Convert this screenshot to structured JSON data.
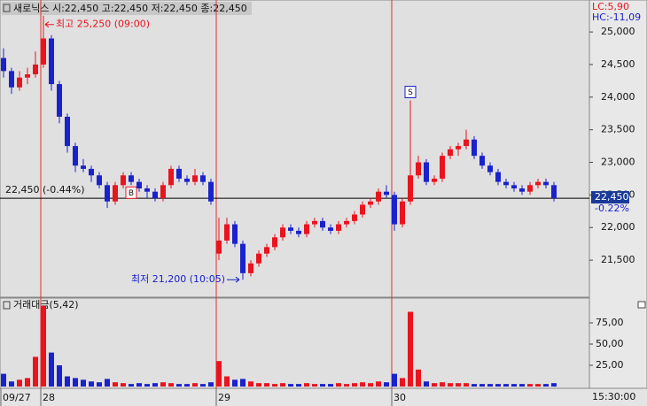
{
  "chart_data": {
    "type": "candlestick",
    "title": "새로닉스 시:22,450 고:22,450 저:22,450 종:22,450",
    "lc_label": "LC:5,90",
    "hc_label": "HC:-11,09",
    "high_label": "최고 25,250 (09:00)",
    "low_label": "최저 21,200 (10:05)",
    "ref_line": {
      "value": 22450,
      "label": "22,450 (-0.44%)"
    },
    "last_price_label": "22,450",
    "last_change_label": "-0.22%",
    "time_label": "15:30:00",
    "up_color": "#e8141e",
    "down_color": "#1a22cc",
    "grid": false,
    "categories": [
      "09/27",
      null,
      null,
      null,
      null,
      "28",
      null,
      null,
      null,
      null,
      null,
      null,
      null,
      null,
      null,
      null,
      null,
      null,
      null,
      null,
      null,
      null,
      null,
      null,
      null,
      null,
      null,
      "29",
      null,
      null,
      null,
      null,
      null,
      null,
      null,
      null,
      null,
      null,
      null,
      null,
      null,
      null,
      null,
      null,
      null,
      null,
      null,
      null,
      null,
      "30",
      null,
      null,
      null,
      null,
      null,
      null,
      null,
      null,
      null,
      null,
      null,
      null,
      null,
      null,
      null,
      null,
      null,
      null,
      null,
      null
    ],
    "signals": [
      null,
      null,
      null,
      null,
      null,
      null,
      null,
      null,
      null,
      null,
      null,
      null,
      null,
      null,
      null,
      null,
      "B",
      null,
      null,
      null,
      null,
      null,
      null,
      null,
      null,
      null,
      null,
      null,
      null,
      null,
      null,
      null,
      null,
      null,
      null,
      null,
      null,
      null,
      null,
      null,
      null,
      null,
      null,
      null,
      null,
      null,
      null,
      null,
      null,
      null,
      null,
      "S",
      null,
      null,
      null,
      null,
      null,
      null,
      null,
      null,
      null,
      null,
      null,
      null,
      null,
      null,
      null,
      null,
      null,
      null
    ],
    "open": [
      24600,
      24400,
      24150,
      24300,
      24350,
      24500,
      24900,
      24200,
      23700,
      23250,
      22950,
      22900,
      22800,
      22650,
      22400,
      22650,
      22800,
      22700,
      22600,
      22550,
      22450,
      22650,
      22900,
      22750,
      22700,
      22800,
      22700,
      21600,
      21800,
      22050,
      21750,
      21300,
      21450,
      21600,
      21700,
      21850,
      22000,
      21950,
      21900,
      22050,
      22100,
      22000,
      21950,
      22050,
      22100,
      22200,
      22350,
      22400,
      22550,
      22500,
      22050,
      22400,
      22800,
      23000,
      22700,
      22750,
      23100,
      23200,
      23250,
      23350,
      23100,
      22950,
      22850,
      22700,
      22650,
      22600,
      22550,
      22650,
      22700,
      22650
    ],
    "high": [
      24750,
      24450,
      24400,
      24450,
      24700,
      25250,
      24950,
      24250,
      23750,
      23300,
      23050,
      22950,
      22850,
      22700,
      22700,
      22850,
      22850,
      22750,
      22650,
      22600,
      22700,
      22950,
      22950,
      22800,
      22900,
      22850,
      22750,
      22150,
      22150,
      22100,
      21800,
      21500,
      21650,
      21750,
      21900,
      22050,
      22050,
      22000,
      22100,
      22150,
      22150,
      22050,
      22100,
      22150,
      22250,
      22400,
      22450,
      22600,
      22650,
      22550,
      22450,
      23950,
      23100,
      23050,
      22800,
      23150,
      23250,
      23300,
      23500,
      23400,
      23150,
      23000,
      22900,
      22750,
      22700,
      22650,
      22700,
      22750,
      22750,
      22700
    ],
    "low": [
      24300,
      24050,
      24100,
      24200,
      24300,
      24450,
      24100,
      23600,
      23150,
      22850,
      22850,
      22700,
      22600,
      22300,
      22350,
      22600,
      22650,
      22550,
      22450,
      22400,
      22400,
      22600,
      22700,
      22650,
      22650,
      22650,
      22350,
      21500,
      21750,
      21700,
      21200,
      21250,
      21400,
      21550,
      21650,
      21800,
      21900,
      21850,
      21850,
      22000,
      21950,
      21900,
      21900,
      22000,
      22050,
      22150,
      22300,
      22350,
      22450,
      21950,
      22000,
      22350,
      22750,
      22650,
      22650,
      22700,
      23050,
      23100,
      23200,
      23050,
      22900,
      22800,
      22650,
      22600,
      22550,
      22500,
      22500,
      22600,
      22600,
      22400
    ],
    "close": [
      24400,
      24150,
      24300,
      24350,
      24500,
      24900,
      24200,
      23700,
      23250,
      22950,
      22900,
      22800,
      22650,
      22400,
      22650,
      22800,
      22700,
      22600,
      22550,
      22450,
      22650,
      22900,
      22750,
      22700,
      22800,
      22700,
      22400,
      21800,
      22050,
      21750,
      21300,
      21450,
      21600,
      21700,
      21850,
      22000,
      21950,
      21900,
      22050,
      22100,
      22000,
      21950,
      22050,
      22100,
      22200,
      22350,
      22400,
      22550,
      22500,
      22050,
      22400,
      22800,
      23000,
      22700,
      22750,
      23100,
      23200,
      23250,
      23350,
      23100,
      22950,
      22850,
      22700,
      22650,
      22600,
      22550,
      22650,
      22700,
      22650,
      22450
    ],
    "ylim": [
      20945,
      25490
    ],
    "yticks": [
      {
        "value": 21500,
        "label": "21,500"
      },
      {
        "value": 22000,
        "label": "22,000"
      },
      {
        "value": 22500,
        "label": "22,500"
      },
      {
        "value": 23000,
        "label": "23,000"
      },
      {
        "value": 23500,
        "label": "23,500"
      },
      {
        "value": 24000,
        "label": "24,000"
      },
      {
        "value": 24500,
        "label": "24,500"
      },
      {
        "value": 25000,
        "label": "25,000"
      }
    ],
    "volume": {
      "title": "거래대금(5,42)",
      "values": [
        15,
        6,
        8,
        10,
        35,
        95,
        40,
        25,
        12,
        10,
        8,
        6,
        5,
        9,
        5,
        4,
        3,
        4,
        3,
        4,
        5,
        4,
        3,
        3,
        4,
        3,
        5,
        30,
        12,
        8,
        9,
        6,
        4,
        4,
        3,
        4,
        3,
        3,
        4,
        3,
        3,
        3,
        4,
        3,
        4,
        5,
        4,
        6,
        5,
        15,
        10,
        88,
        20,
        6,
        4,
        5,
        4,
        4,
        4,
        3,
        3,
        3,
        3,
        3,
        3,
        3,
        3,
        3,
        3,
        4
      ],
      "ylim": [
        0,
        100
      ],
      "yticks": [
        {
          "value": 25,
          "label": "25,00"
        },
        {
          "value": 50,
          "label": "50,00"
        },
        {
          "value": 75,
          "label": "75,00"
        }
      ]
    }
  }
}
